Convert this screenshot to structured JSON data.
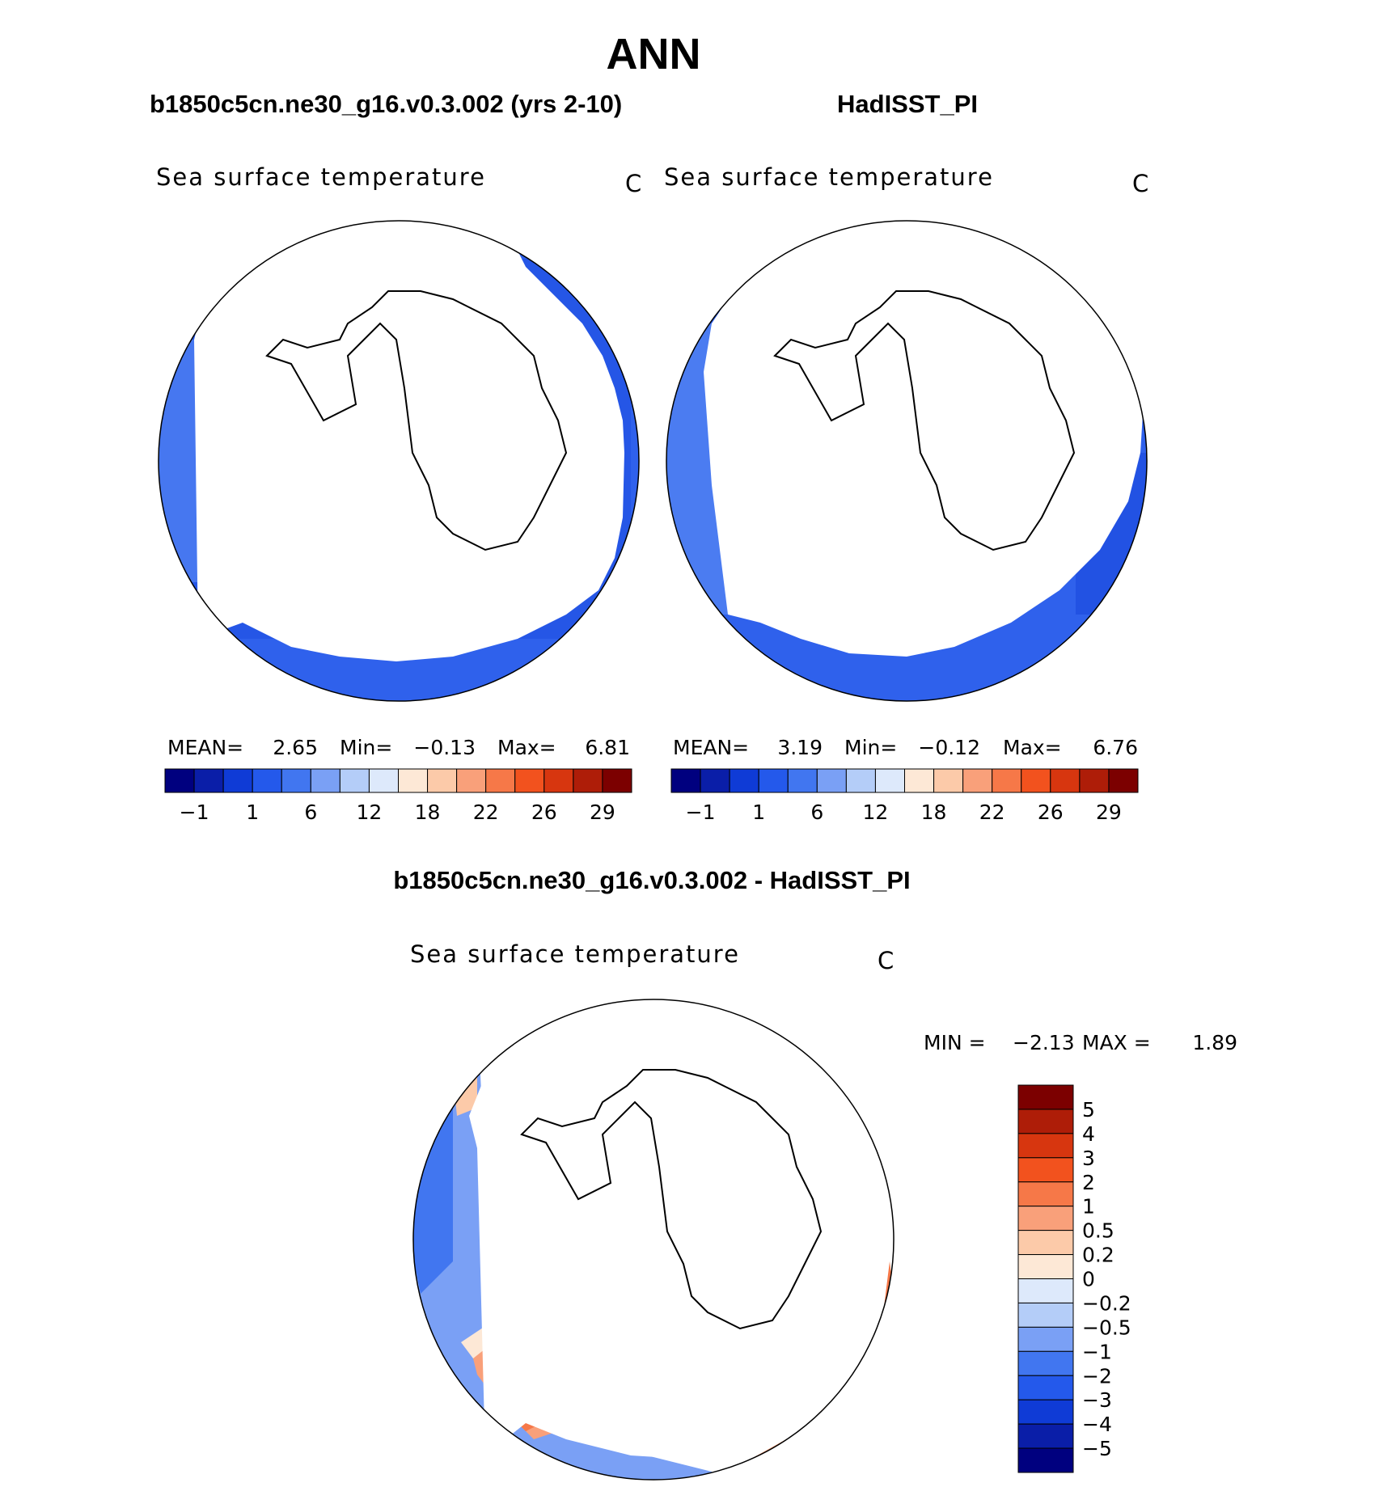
{
  "chart_data": {
    "type": "map",
    "title": "ANN",
    "panels": [
      {
        "id": "model",
        "header": "b1850c5cn.ne30_g16.v0.3.002 (yrs 2-10)",
        "variable": "Sea surface temperature",
        "units": "C",
        "stats": {
          "mean_label": "MEAN=",
          "mean": "2.65",
          "min_label": "Min=",
          "min": "−0.13",
          "max_label": "Max=",
          "max": "6.81"
        },
        "colorbar": {
          "colors": [
            "#00007f",
            "#0a1ea8",
            "#0f3bd6",
            "#2459eb",
            "#4176f0",
            "#7aa0f5",
            "#b4cdf8",
            "#dde9fb",
            "#fde8d6",
            "#fccaa9",
            "#f9a07a",
            "#f67848",
            "#f2521e",
            "#d7360f",
            "#ae1d08",
            "#7c0000"
          ],
          "tick_labels": [
            "−1",
            "1",
            "6",
            "12",
            "18",
            "22",
            "26",
            "29"
          ]
        }
      },
      {
        "id": "obs",
        "header": "HadISST_PI",
        "variable": "Sea surface temperature",
        "units": "C",
        "stats": {
          "mean_label": "MEAN=",
          "mean": "3.19",
          "min_label": "Min=",
          "min": "−0.12",
          "max_label": "Max=",
          "max": "6.76"
        },
        "colorbar": {
          "colors": [
            "#00007f",
            "#0a1ea8",
            "#0f3bd6",
            "#2459eb",
            "#4176f0",
            "#7aa0f5",
            "#b4cdf8",
            "#dde9fb",
            "#fde8d6",
            "#fccaa9",
            "#f9a07a",
            "#f67848",
            "#f2521e",
            "#d7360f",
            "#ae1d08",
            "#7c0000"
          ],
          "tick_labels": [
            "−1",
            "1",
            "6",
            "12",
            "18",
            "22",
            "26",
            "29"
          ]
        }
      },
      {
        "id": "diff",
        "header": "b1850c5cn.ne30_g16.v0.3.002 - HadISST_PI",
        "variable": "Sea surface temperature",
        "units": "C",
        "stats": {
          "min_label": "MIN =",
          "min": "−2.13",
          "max_label": "MAX =",
          "max": "1.89"
        },
        "colorbar": {
          "colors": [
            "#7c0000",
            "#ae1d08",
            "#d7360f",
            "#f2521e",
            "#f67848",
            "#f9a07a",
            "#fccaa9",
            "#fde8d6",
            "#dde9fb",
            "#b4cdf8",
            "#7aa0f5",
            "#4176f0",
            "#2459eb",
            "#0f3bd6",
            "#0a1ea8",
            "#00007f"
          ],
          "tick_labels": [
            "5",
            "4",
            "3",
            "2",
            "1",
            "0.5",
            "0.2",
            "0",
            "−0.2",
            "−0.5",
            "−1",
            "−2",
            "−3",
            "−4",
            "−5"
          ]
        }
      }
    ],
    "projection": "south-polar stereographic"
  }
}
